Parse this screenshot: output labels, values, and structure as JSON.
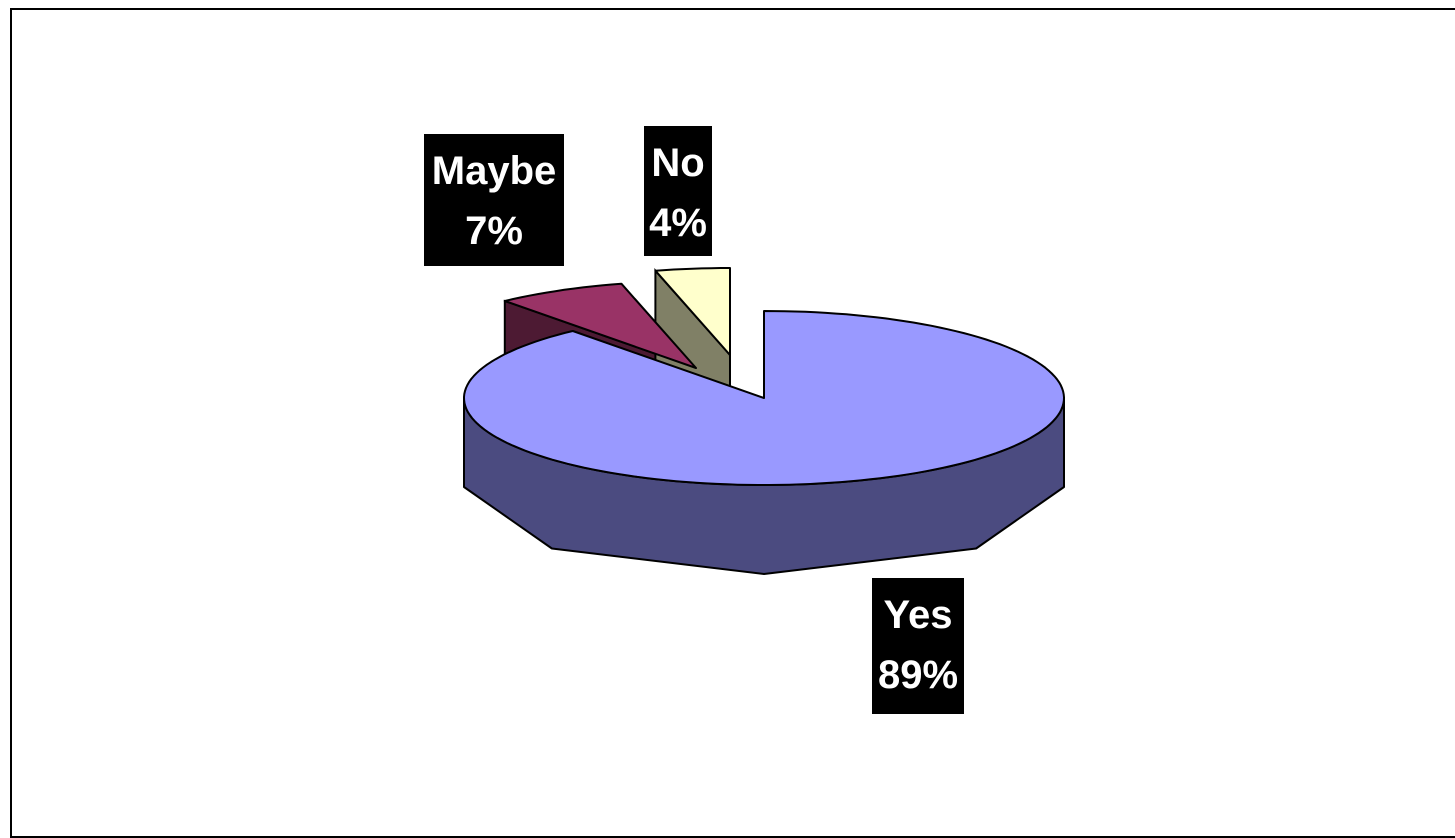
{
  "chart_data": {
    "type": "pie",
    "style": "3d-exploded",
    "categories": [
      "Yes",
      "Maybe",
      "No"
    ],
    "values": [
      89,
      7,
      4
    ],
    "labels": [
      {
        "name": "Yes",
        "percent": "89%"
      },
      {
        "name": "Maybe",
        "percent": "7%"
      },
      {
        "name": "No",
        "percent": "4%"
      }
    ],
    "colors": {
      "Yes": {
        "top": "#9999FF",
        "side": "#4B4B80"
      },
      "Maybe": {
        "top": "#993366",
        "side": "#4D1A33"
      },
      "No": {
        "top": "#FFFFCC",
        "side": "#808066"
      }
    },
    "label_style": {
      "background": "#000000",
      "text": "#FFFFFF"
    },
    "legend": "none"
  }
}
